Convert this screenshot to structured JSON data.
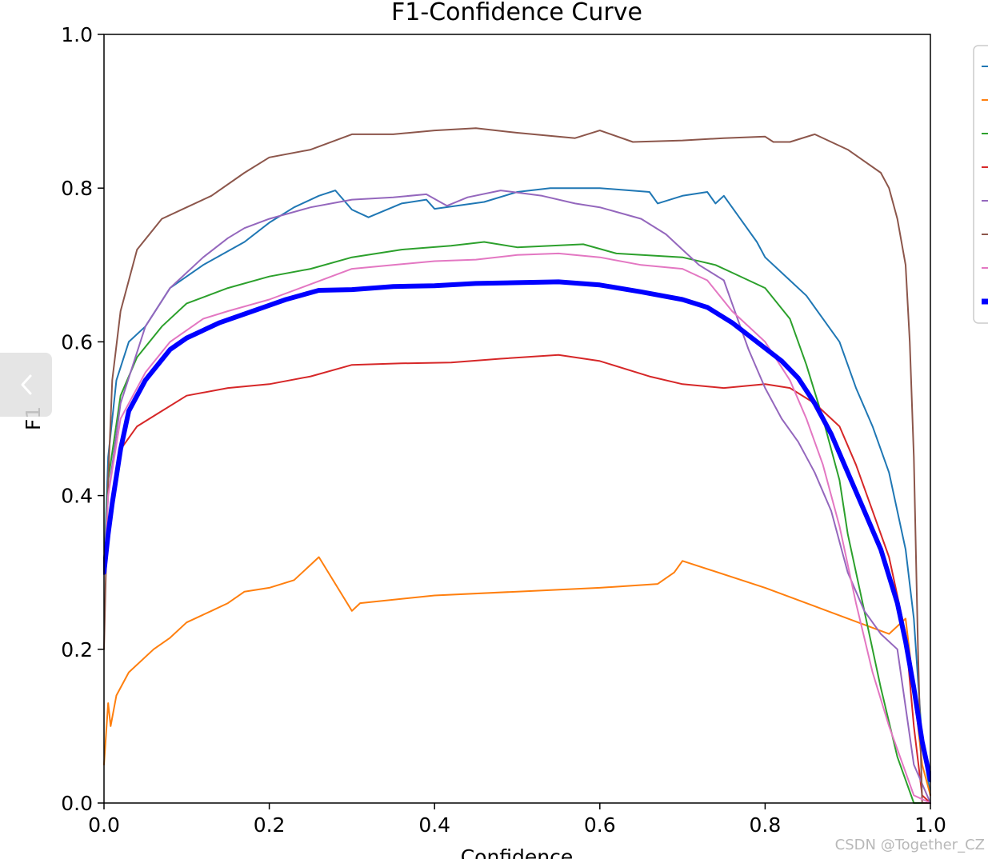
{
  "chart_data": {
    "type": "line",
    "title": "F1-Confidence Curve",
    "xlabel": "Confidence",
    "ylabel": "F1",
    "xlim": [
      0,
      1
    ],
    "ylim": [
      0,
      1
    ],
    "xticks": [
      "0.0",
      "0.2",
      "0.4",
      "0.6",
      "0.8",
      "1.0"
    ],
    "yticks": [
      "0.0",
      "0.2",
      "0.4",
      "0.6",
      "0.8",
      "1.0"
    ],
    "grid": false,
    "legend": "right-outside, entries cropped (text not visible)",
    "series": [
      {
        "color": "#1f77b4",
        "width": 2,
        "points": [
          [
            0,
            0.3
          ],
          [
            0.005,
            0.45
          ],
          [
            0.015,
            0.55
          ],
          [
            0.03,
            0.6
          ],
          [
            0.05,
            0.62
          ],
          [
            0.08,
            0.67
          ],
          [
            0.12,
            0.7
          ],
          [
            0.17,
            0.73
          ],
          [
            0.2,
            0.755
          ],
          [
            0.23,
            0.775
          ],
          [
            0.26,
            0.79
          ],
          [
            0.28,
            0.797
          ],
          [
            0.3,
            0.772
          ],
          [
            0.32,
            0.762
          ],
          [
            0.36,
            0.78
          ],
          [
            0.39,
            0.785
          ],
          [
            0.4,
            0.773
          ],
          [
            0.46,
            0.782
          ],
          [
            0.5,
            0.795
          ],
          [
            0.54,
            0.8
          ],
          [
            0.6,
            0.8
          ],
          [
            0.66,
            0.795
          ],
          [
            0.67,
            0.78
          ],
          [
            0.7,
            0.79
          ],
          [
            0.73,
            0.795
          ],
          [
            0.74,
            0.78
          ],
          [
            0.75,
            0.79
          ],
          [
            0.77,
            0.76
          ],
          [
            0.79,
            0.73
          ],
          [
            0.8,
            0.71
          ],
          [
            0.83,
            0.68
          ],
          [
            0.85,
            0.66
          ],
          [
            0.87,
            0.63
          ],
          [
            0.89,
            0.6
          ],
          [
            0.9,
            0.57
          ],
          [
            0.91,
            0.54
          ],
          [
            0.93,
            0.49
          ],
          [
            0.95,
            0.43
          ],
          [
            0.97,
            0.33
          ],
          [
            0.98,
            0.24
          ],
          [
            0.99,
            0.08
          ],
          [
            1.0,
            0.01
          ]
        ]
      },
      {
        "color": "#ff7f0e",
        "width": 2,
        "points": [
          [
            0,
            0.05
          ],
          [
            0.005,
            0.13
          ],
          [
            0.008,
            0.1
          ],
          [
            0.015,
            0.14
          ],
          [
            0.03,
            0.17
          ],
          [
            0.06,
            0.2
          ],
          [
            0.08,
            0.215
          ],
          [
            0.1,
            0.235
          ],
          [
            0.13,
            0.25
          ],
          [
            0.15,
            0.26
          ],
          [
            0.17,
            0.275
          ],
          [
            0.2,
            0.28
          ],
          [
            0.23,
            0.29
          ],
          [
            0.25,
            0.31
          ],
          [
            0.26,
            0.32
          ],
          [
            0.3,
            0.25
          ],
          [
            0.31,
            0.26
          ],
          [
            0.4,
            0.27
          ],
          [
            0.5,
            0.275
          ],
          [
            0.6,
            0.28
          ],
          [
            0.67,
            0.285
          ],
          [
            0.69,
            0.3
          ],
          [
            0.7,
            0.315
          ],
          [
            0.8,
            0.28
          ],
          [
            0.95,
            0.22
          ],
          [
            0.97,
            0.24
          ],
          [
            0.98,
            0.15
          ],
          [
            0.99,
            0.05
          ],
          [
            1.0,
            0.01
          ]
        ]
      },
      {
        "color": "#2ca02c",
        "width": 2,
        "points": [
          [
            0,
            0.3
          ],
          [
            0.005,
            0.42
          ],
          [
            0.02,
            0.53
          ],
          [
            0.04,
            0.58
          ],
          [
            0.07,
            0.62
          ],
          [
            0.1,
            0.65
          ],
          [
            0.15,
            0.67
          ],
          [
            0.2,
            0.685
          ],
          [
            0.25,
            0.695
          ],
          [
            0.3,
            0.71
          ],
          [
            0.36,
            0.72
          ],
          [
            0.42,
            0.725
          ],
          [
            0.46,
            0.73
          ],
          [
            0.5,
            0.723
          ],
          [
            0.58,
            0.727
          ],
          [
            0.62,
            0.715
          ],
          [
            0.7,
            0.71
          ],
          [
            0.74,
            0.7
          ],
          [
            0.76,
            0.69
          ],
          [
            0.8,
            0.67
          ],
          [
            0.83,
            0.63
          ],
          [
            0.85,
            0.57
          ],
          [
            0.87,
            0.5
          ],
          [
            0.89,
            0.42
          ],
          [
            0.9,
            0.35
          ],
          [
            0.92,
            0.25
          ],
          [
            0.94,
            0.15
          ],
          [
            0.96,
            0.06
          ],
          [
            0.98,
            0.0
          ],
          [
            1.0,
            0.0
          ]
        ]
      },
      {
        "color": "#d62728",
        "width": 2,
        "points": [
          [
            0,
            0.3
          ],
          [
            0.005,
            0.36
          ],
          [
            0.02,
            0.46
          ],
          [
            0.04,
            0.49
          ],
          [
            0.07,
            0.51
          ],
          [
            0.1,
            0.53
          ],
          [
            0.15,
            0.54
          ],
          [
            0.2,
            0.545
          ],
          [
            0.25,
            0.555
          ],
          [
            0.3,
            0.57
          ],
          [
            0.36,
            0.572
          ],
          [
            0.42,
            0.573
          ],
          [
            0.48,
            0.578
          ],
          [
            0.55,
            0.583
          ],
          [
            0.6,
            0.575
          ],
          [
            0.66,
            0.555
          ],
          [
            0.7,
            0.545
          ],
          [
            0.75,
            0.54
          ],
          [
            0.8,
            0.545
          ],
          [
            0.83,
            0.54
          ],
          [
            0.86,
            0.52
          ],
          [
            0.89,
            0.49
          ],
          [
            0.91,
            0.44
          ],
          [
            0.93,
            0.38
          ],
          [
            0.95,
            0.32
          ],
          [
            0.97,
            0.22
          ],
          [
            0.98,
            0.1
          ],
          [
            0.99,
            0.01
          ],
          [
            1.0,
            0.0
          ]
        ]
      },
      {
        "color": "#9467bd",
        "width": 2,
        "points": [
          [
            0,
            0.3
          ],
          [
            0.005,
            0.4
          ],
          [
            0.02,
            0.52
          ],
          [
            0.05,
            0.62
          ],
          [
            0.08,
            0.67
          ],
          [
            0.12,
            0.71
          ],
          [
            0.15,
            0.735
          ],
          [
            0.17,
            0.748
          ],
          [
            0.2,
            0.76
          ],
          [
            0.25,
            0.775
          ],
          [
            0.3,
            0.785
          ],
          [
            0.35,
            0.788
          ],
          [
            0.39,
            0.792
          ],
          [
            0.415,
            0.777
          ],
          [
            0.44,
            0.788
          ],
          [
            0.48,
            0.797
          ],
          [
            0.53,
            0.79
          ],
          [
            0.57,
            0.78
          ],
          [
            0.6,
            0.775
          ],
          [
            0.65,
            0.76
          ],
          [
            0.68,
            0.74
          ],
          [
            0.7,
            0.72
          ],
          [
            0.72,
            0.7
          ],
          [
            0.75,
            0.68
          ],
          [
            0.76,
            0.65
          ],
          [
            0.78,
            0.59
          ],
          [
            0.8,
            0.54
          ],
          [
            0.82,
            0.5
          ],
          [
            0.84,
            0.47
          ],
          [
            0.86,
            0.43
          ],
          [
            0.88,
            0.38
          ],
          [
            0.9,
            0.3
          ],
          [
            0.92,
            0.25
          ],
          [
            0.94,
            0.22
          ],
          [
            0.96,
            0.2
          ],
          [
            0.98,
            0.05
          ],
          [
            1.0,
            0.0
          ]
        ]
      },
      {
        "color": "#8c564b",
        "width": 2,
        "points": [
          [
            0,
            0.2
          ],
          [
            0.005,
            0.42
          ],
          [
            0.01,
            0.55
          ],
          [
            0.02,
            0.64
          ],
          [
            0.04,
            0.72
          ],
          [
            0.07,
            0.76
          ],
          [
            0.1,
            0.775
          ],
          [
            0.13,
            0.79
          ],
          [
            0.17,
            0.82
          ],
          [
            0.2,
            0.84
          ],
          [
            0.25,
            0.85
          ],
          [
            0.3,
            0.87
          ],
          [
            0.35,
            0.87
          ],
          [
            0.4,
            0.875
          ],
          [
            0.45,
            0.878
          ],
          [
            0.5,
            0.872
          ],
          [
            0.57,
            0.865
          ],
          [
            0.6,
            0.875
          ],
          [
            0.64,
            0.86
          ],
          [
            0.7,
            0.862
          ],
          [
            0.75,
            0.865
          ],
          [
            0.8,
            0.867
          ],
          [
            0.81,
            0.86
          ],
          [
            0.83,
            0.86
          ],
          [
            0.86,
            0.87
          ],
          [
            0.9,
            0.85
          ],
          [
            0.92,
            0.835
          ],
          [
            0.94,
            0.82
          ],
          [
            0.95,
            0.8
          ],
          [
            0.96,
            0.76
          ],
          [
            0.97,
            0.7
          ],
          [
            0.975,
            0.6
          ],
          [
            0.98,
            0.45
          ],
          [
            0.985,
            0.2
          ],
          [
            0.99,
            0.0
          ],
          [
            1.0,
            0.0
          ]
        ]
      },
      {
        "color": "#e377c2",
        "width": 2,
        "points": [
          [
            0,
            0.3
          ],
          [
            0.005,
            0.4
          ],
          [
            0.02,
            0.5
          ],
          [
            0.05,
            0.56
          ],
          [
            0.08,
            0.6
          ],
          [
            0.12,
            0.63
          ],
          [
            0.15,
            0.64
          ],
          [
            0.2,
            0.655
          ],
          [
            0.25,
            0.675
          ],
          [
            0.3,
            0.695
          ],
          [
            0.35,
            0.7
          ],
          [
            0.4,
            0.705
          ],
          [
            0.45,
            0.707
          ],
          [
            0.5,
            0.713
          ],
          [
            0.55,
            0.715
          ],
          [
            0.6,
            0.71
          ],
          [
            0.65,
            0.7
          ],
          [
            0.7,
            0.695
          ],
          [
            0.73,
            0.68
          ],
          [
            0.76,
            0.64
          ],
          [
            0.8,
            0.6
          ],
          [
            0.83,
            0.55
          ],
          [
            0.85,
            0.5
          ],
          [
            0.87,
            0.44
          ],
          [
            0.89,
            0.36
          ],
          [
            0.91,
            0.26
          ],
          [
            0.93,
            0.17
          ],
          [
            0.95,
            0.1
          ],
          [
            0.97,
            0.04
          ],
          [
            0.98,
            0.01
          ],
          [
            1.0,
            0.0
          ]
        ]
      },
      {
        "color": "#0000ff",
        "width": 6,
        "points": [
          [
            0,
            0.3
          ],
          [
            0.005,
            0.35
          ],
          [
            0.01,
            0.39
          ],
          [
            0.02,
            0.46
          ],
          [
            0.03,
            0.51
          ],
          [
            0.05,
            0.55
          ],
          [
            0.08,
            0.59
          ],
          [
            0.1,
            0.605
          ],
          [
            0.14,
            0.625
          ],
          [
            0.18,
            0.64
          ],
          [
            0.22,
            0.655
          ],
          [
            0.26,
            0.667
          ],
          [
            0.3,
            0.668
          ],
          [
            0.35,
            0.672
          ],
          [
            0.4,
            0.673
          ],
          [
            0.45,
            0.676
          ],
          [
            0.5,
            0.677
          ],
          [
            0.55,
            0.678
          ],
          [
            0.6,
            0.674
          ],
          [
            0.65,
            0.665
          ],
          [
            0.7,
            0.655
          ],
          [
            0.73,
            0.645
          ],
          [
            0.76,
            0.625
          ],
          [
            0.79,
            0.6
          ],
          [
            0.82,
            0.575
          ],
          [
            0.84,
            0.553
          ],
          [
            0.86,
            0.52
          ],
          [
            0.88,
            0.48
          ],
          [
            0.9,
            0.43
          ],
          [
            0.92,
            0.38
          ],
          [
            0.94,
            0.33
          ],
          [
            0.96,
            0.26
          ],
          [
            0.97,
            0.21
          ],
          [
            0.98,
            0.15
          ],
          [
            0.99,
            0.08
          ],
          [
            1.0,
            0.03
          ]
        ]
      }
    ],
    "legend_colors": [
      "#1f77b4",
      "#ff7f0e",
      "#2ca02c",
      "#d62728",
      "#9467bd",
      "#8c564b",
      "#e377c2",
      "#0000ff"
    ]
  },
  "watermark": "CSDN @Together_CZ",
  "nav": {
    "back_icon": "chevron-left-icon"
  }
}
